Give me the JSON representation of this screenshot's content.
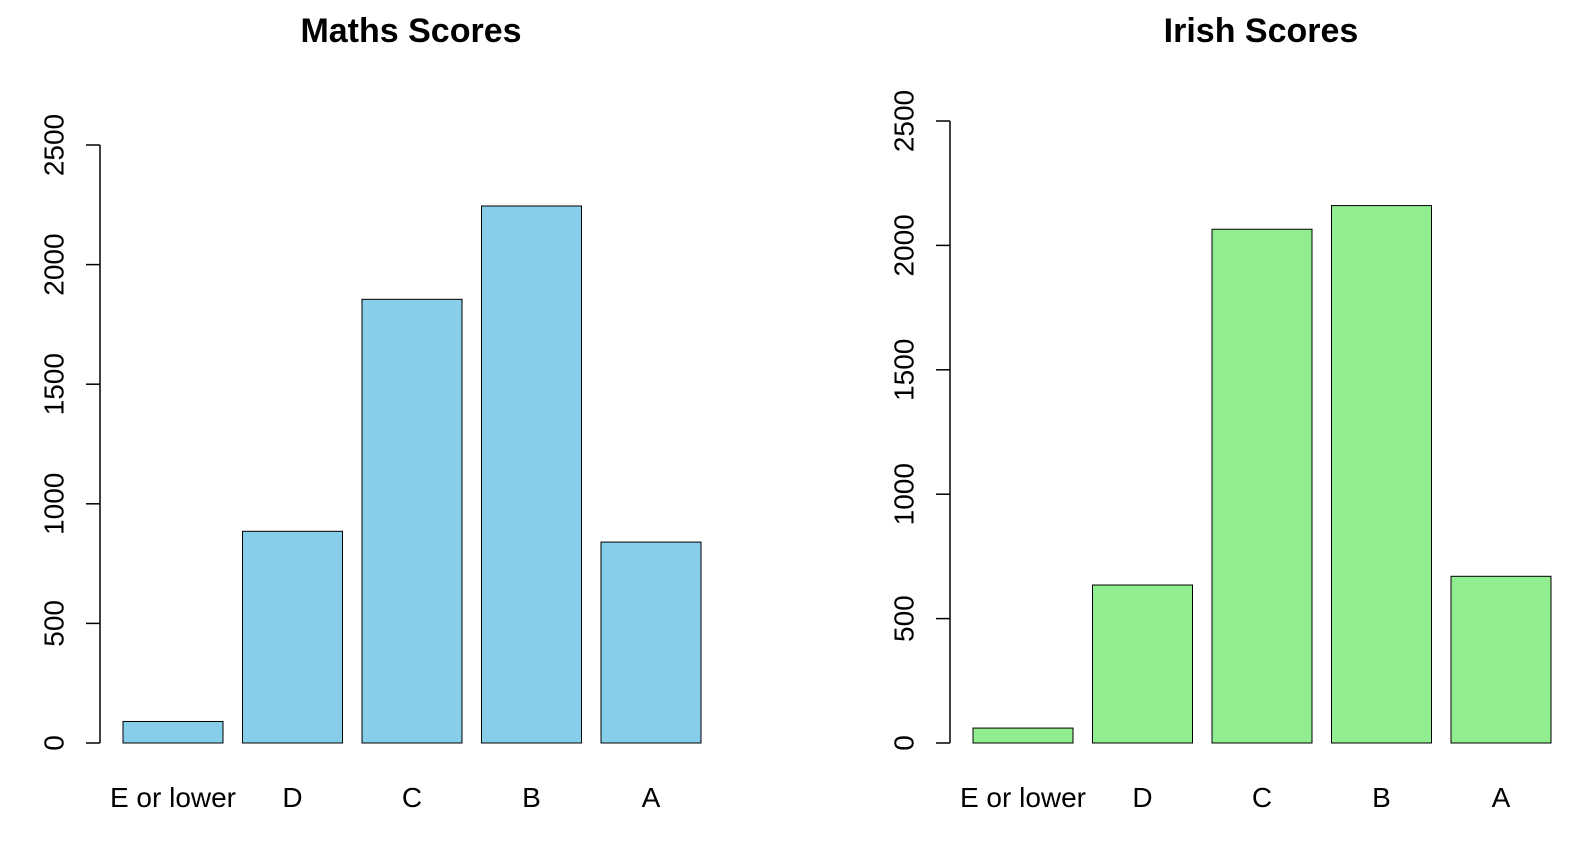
{
  "chart_data": [
    {
      "type": "bar",
      "title": "Maths Scores",
      "xlabel": "",
      "ylabel": "",
      "categories": [
        "E or lower",
        "D",
        "C",
        "B",
        "A"
      ],
      "values": [
        90,
        885,
        1855,
        2245,
        840
      ],
      "ylim": [
        0,
        2500
      ],
      "yticks": [
        "0",
        "500",
        "1000",
        "1500",
        "2000",
        "2500"
      ],
      "bar_color": "#87CEEB",
      "grid": false,
      "legend": "none"
    },
    {
      "type": "bar",
      "title": "Irish Scores",
      "xlabel": "",
      "ylabel": "",
      "categories": [
        "E or lower",
        "D",
        "C",
        "B",
        "A"
      ],
      "values": [
        60,
        635,
        2065,
        2160,
        670
      ],
      "ylim": [
        0,
        2500
      ],
      "yticks": [
        "0",
        "500",
        "1000",
        "1500",
        "2000",
        "2500"
      ],
      "bar_color": "#90EE90",
      "grid": false,
      "legend": "none"
    }
  ]
}
